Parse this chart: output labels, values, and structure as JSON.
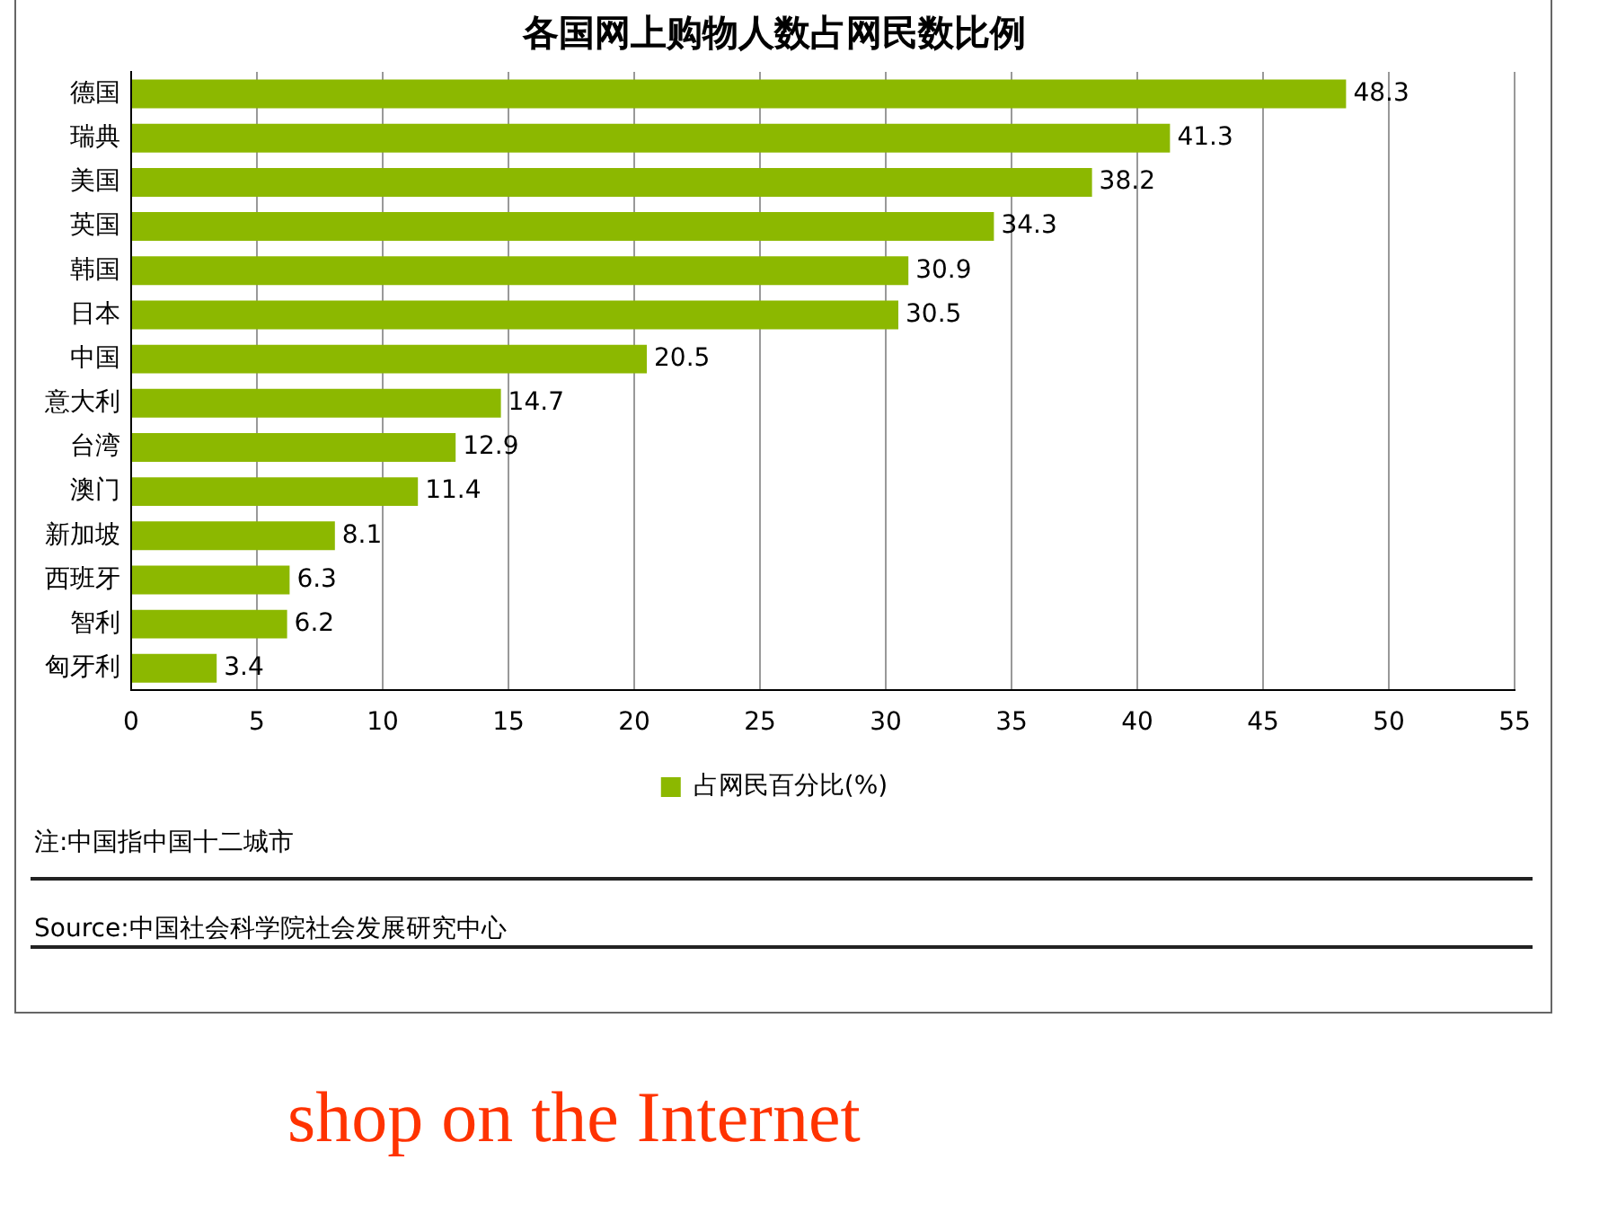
{
  "chart_data": {
    "type": "bar",
    "orientation": "horizontal",
    "title": "各国网上购物人数占网民数比例",
    "categories": [
      "德国",
      "瑞典",
      "美国",
      "英国",
      "韩国",
      "日本",
      "中国",
      "意大利",
      "台湾",
      "澳门",
      "新加坡",
      "西班牙",
      "智利",
      "匈牙利"
    ],
    "series": [
      {
        "name": "占网民百分比(%)",
        "color": "#8cb800",
        "values": [
          48.3,
          41.3,
          38.2,
          34.3,
          30.9,
          30.5,
          20.5,
          14.7,
          12.9,
          11.4,
          8.1,
          6.3,
          6.2,
          3.4
        ]
      }
    ],
    "xlim": [
      0,
      55
    ],
    "xticks": [
      0,
      5,
      10,
      15,
      20,
      25,
      30,
      35,
      40,
      45,
      50,
      55
    ],
    "grid": "x",
    "legend": "bottom",
    "data_labels": true,
    "annotations": [
      "注:中国指中国十二城市",
      "Source:中国社会科学院社会发展研究中心",
      "shop on the Internet"
    ]
  }
}
